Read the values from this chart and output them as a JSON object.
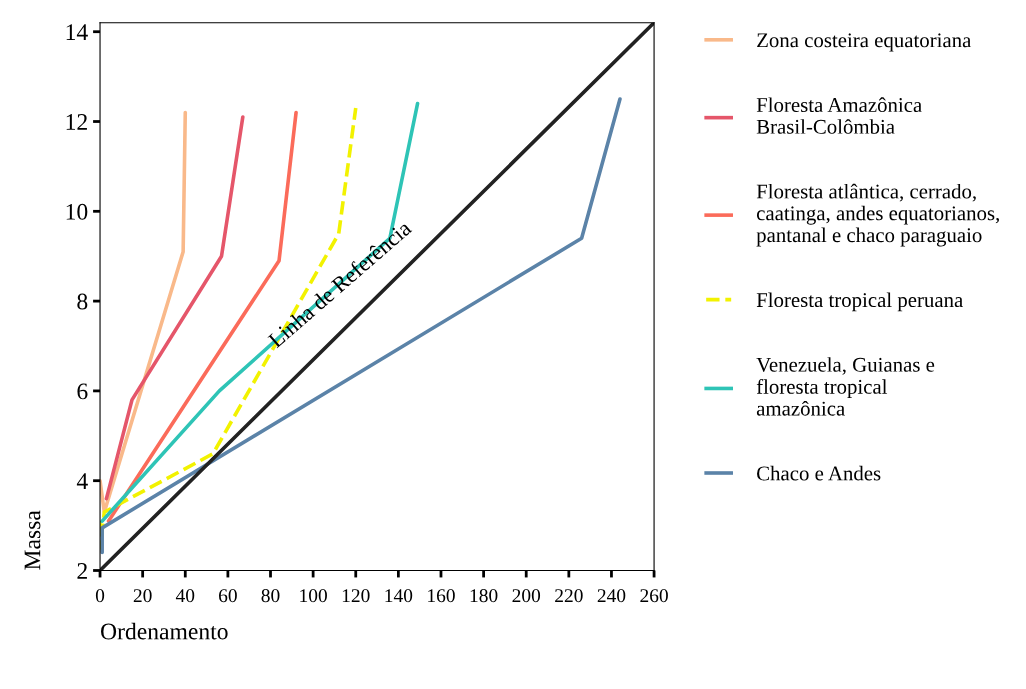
{
  "chart_data": {
    "type": "line",
    "xlabel": "Ordenamento",
    "ylabel": "Massa",
    "xlim": [
      0,
      260
    ],
    "ylim": [
      2,
      14.2
    ],
    "xticks": [
      0,
      20,
      40,
      60,
      80,
      100,
      120,
      140,
      160,
      180,
      200,
      220,
      240,
      260
    ],
    "yticks": [
      2,
      4,
      6,
      8,
      10,
      12,
      14
    ],
    "grid": false,
    "legend": "right",
    "marker": "none",
    "line_style": "solid",
    "annotations": [
      "Linha de Referência"
    ],
    "series": [
      {
        "name": "Zona costeira equatoriana",
        "color": "#f9b98a",
        "x": [
          0,
          2,
          39,
          40
        ],
        "values": [
          4.0,
          3.3,
          9.1,
          12.2
        ]
      },
      {
        "name": "Floresta Amazônica\nBrasil-Colômbia",
        "color": "#e5566a",
        "x": [
          3,
          15,
          57,
          67
        ],
        "values": [
          3.6,
          5.8,
          9.0,
          12.1
        ]
      },
      {
        "name": "Floresta atlântica, cerrado,\ncaatinga, andes equatorianos,\npantanal e chaco paraguaio",
        "color": "#fb6b5a",
        "x": [
          4,
          84,
          92
        ],
        "values": [
          3.1,
          8.9,
          12.2
        ]
      },
      {
        "name": "Floresta tropical peruana",
        "color": "#f2f200",
        "line_style": "dashed",
        "x": [
          0,
          0,
          2,
          53,
          112,
          120
        ],
        "values": [
          3.1,
          2.5,
          3.3,
          4.6,
          9.5,
          12.3
        ]
      },
      {
        "name": "Venezuela, Guianas e\nfloresta tropical\namazônica",
        "color": "#2ec4b6",
        "x": [
          1,
          56,
          136,
          149
        ],
        "values": [
          3.1,
          6.0,
          9.4,
          12.4
        ]
      },
      {
        "name": "Chaco e Andes",
        "color": "#5b83a8",
        "x": [
          1,
          1,
          226,
          244
        ],
        "values": [
          2.4,
          2.95,
          9.4,
          12.5
        ]
      },
      {
        "color": "#222222",
        "x": [
          0,
          260
        ],
        "values": [
          2,
          14.2
        ]
      }
    ]
  }
}
